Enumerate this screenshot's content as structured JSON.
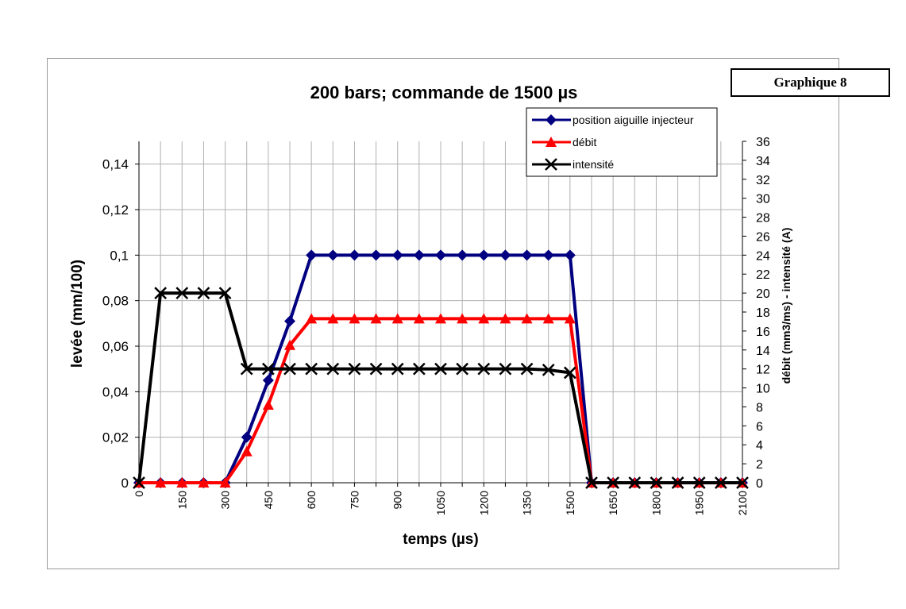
{
  "graphique_label": "Graphique 8",
  "chart_data": {
    "type": "line",
    "title": "200 bars; commande de 1500 µs",
    "xlabel": "temps (µs)",
    "ylabel": "levée (mm/100)",
    "y2label": "débit (mm3/ms) - intensité (A)",
    "xlim": [
      0,
      2100
    ],
    "ylim": [
      0,
      0.15
    ],
    "y2lim": [
      0,
      36
    ],
    "x_ticks": [
      0,
      150,
      300,
      450,
      600,
      750,
      900,
      1050,
      1200,
      1350,
      1500,
      1650,
      1800,
      1950,
      2100
    ],
    "y_ticks": [
      "0",
      "0,02",
      "0,04",
      "0,06",
      "0,08",
      "0,1",
      "0,12",
      "0,14"
    ],
    "y_tick_values": [
      0,
      0.02,
      0.04,
      0.06,
      0.08,
      0.1,
      0.12,
      0.14
    ],
    "y2_ticks": [
      0,
      2,
      4,
      6,
      8,
      10,
      12,
      14,
      16,
      18,
      20,
      22,
      24,
      26,
      28,
      30,
      32,
      34,
      36
    ],
    "grid": true,
    "legend_position": "top-right",
    "x": [
      0,
      75,
      150,
      225,
      300,
      375,
      450,
      525,
      600,
      675,
      750,
      825,
      900,
      975,
      1050,
      1125,
      1200,
      1275,
      1350,
      1425,
      1500,
      1575,
      1650,
      1725,
      1800,
      1875,
      1950,
      2025,
      2100
    ],
    "series": [
      {
        "name": "position aiguille injecteur",
        "axis": "left",
        "color": "#000080",
        "marker": "diamond",
        "values": [
          0,
          0,
          0,
          0,
          0,
          0.02,
          0.045,
          0.071,
          0.1,
          0.1,
          0.1,
          0.1,
          0.1,
          0.1,
          0.1,
          0.1,
          0.1,
          0.1,
          0.1,
          0.1,
          0.1,
          0,
          0,
          0,
          0,
          0,
          0,
          0,
          0
        ]
      },
      {
        "name": "débit",
        "axis": "right",
        "color": "#ff0000",
        "marker": "triangle",
        "values": [
          0,
          0,
          0,
          0,
          0,
          3.3,
          8.2,
          14.5,
          17.3,
          17.3,
          17.3,
          17.3,
          17.3,
          17.3,
          17.3,
          17.3,
          17.3,
          17.3,
          17.3,
          17.3,
          17.3,
          0,
          0,
          0,
          0,
          0,
          0,
          0,
          0
        ]
      },
      {
        "name": "intensité",
        "axis": "right",
        "color": "#000000",
        "marker": "x",
        "values": [
          0,
          20,
          20,
          20,
          20,
          12,
          12,
          12,
          12,
          12,
          12,
          12,
          12,
          12,
          12,
          12,
          12,
          12,
          12,
          11.9,
          11.6,
          0,
          0,
          0,
          0,
          0,
          0,
          0,
          0
        ]
      }
    ]
  }
}
